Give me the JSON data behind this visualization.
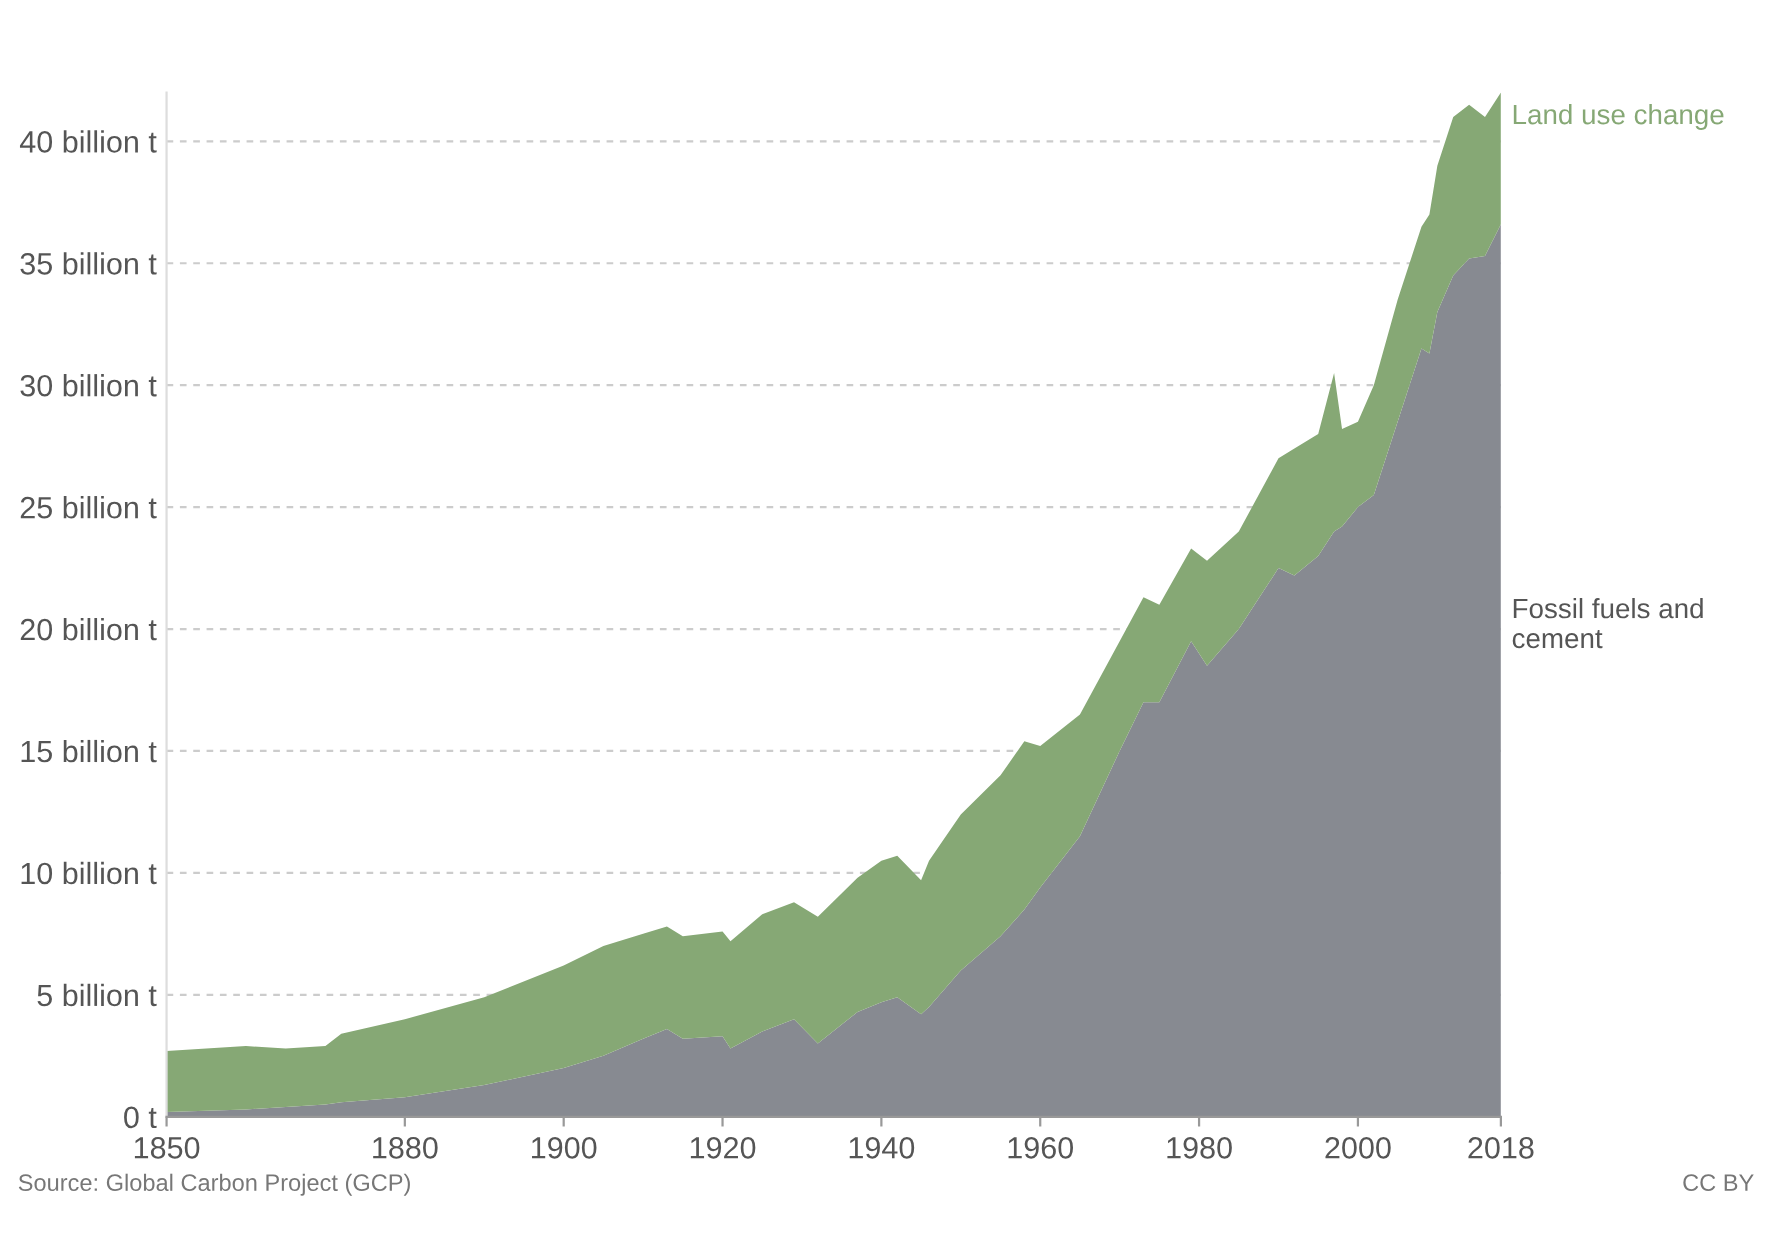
{
  "chart_data": {
    "type": "area",
    "stacked": true,
    "grid": "y",
    "legend": false,
    "x": [
      1850,
      1860,
      1865,
      1870,
      1872,
      1880,
      1890,
      1900,
      1905,
      1910,
      1913,
      1915,
      1920,
      1921,
      1925,
      1929,
      1932,
      1937,
      1940,
      1942,
      1945,
      1946,
      1950,
      1955,
      1958,
      1960,
      1965,
      1970,
      1973,
      1975,
      1979,
      1981,
      1985,
      1990,
      1992,
      1995,
      1997,
      1998,
      2000,
      2002,
      2005,
      2008,
      2009,
      2010,
      2012,
      2014,
      2016,
      2018
    ],
    "series": [
      {
        "name": "Fossil fuels and cement",
        "color": "#878a91",
        "values": [
          0.2,
          0.3,
          0.4,
          0.5,
          0.6,
          0.8,
          1.3,
          2.0,
          2.5,
          3.2,
          3.6,
          3.2,
          3.3,
          2.8,
          3.5,
          4.0,
          3.0,
          4.3,
          4.7,
          4.9,
          4.2,
          4.5,
          6.0,
          7.4,
          8.5,
          9.4,
          11.5,
          15.0,
          17.0,
          17.0,
          19.5,
          18.5,
          20.0,
          22.5,
          22.2,
          23.0,
          24.0,
          24.2,
          25.0,
          25.5,
          28.5,
          31.5,
          31.3,
          33.0,
          34.5,
          35.2,
          35.3,
          36.6
        ]
      },
      {
        "name": "Land use change",
        "color": "#86a875",
        "values": [
          2.5,
          2.6,
          2.4,
          2.4,
          2.8,
          3.2,
          3.6,
          4.2,
          4.5,
          4.3,
          4.2,
          4.2,
          4.3,
          4.4,
          4.8,
          4.8,
          5.2,
          5.5,
          5.8,
          5.8,
          5.5,
          6.0,
          6.4,
          6.6,
          6.9,
          5.8,
          5.0,
          4.5,
          4.3,
          4.0,
          3.8,
          4.3,
          4.0,
          4.5,
          5.2,
          5.0,
          6.5,
          4.0,
          3.5,
          4.5,
          5.0,
          5.0,
          5.7,
          6.0,
          6.5,
          6.3,
          5.7,
          5.4
        ]
      }
    ],
    "xlim": [
      1850,
      2018
    ],
    "xticks": [
      1850,
      1880,
      1900,
      1920,
      1940,
      1960,
      1980,
      2000,
      2018
    ],
    "ylim": [
      0,
      42
    ],
    "yticks": [
      {
        "value": 0,
        "label": "0 t"
      },
      {
        "value": 5,
        "label": "5 billion t"
      },
      {
        "value": 10,
        "label": "10 billion t"
      },
      {
        "value": 15,
        "label": "15 billion t"
      },
      {
        "value": 20,
        "label": "20 billion t"
      },
      {
        "value": 25,
        "label": "25 billion t"
      },
      {
        "value": 30,
        "label": "30 billion t"
      },
      {
        "value": 35,
        "label": "35 billion t"
      },
      {
        "value": 40,
        "label": "40 billion t"
      }
    ],
    "annotations": [
      "Source: Global Carbon Project (GCP)",
      "CC BY"
    ]
  }
}
